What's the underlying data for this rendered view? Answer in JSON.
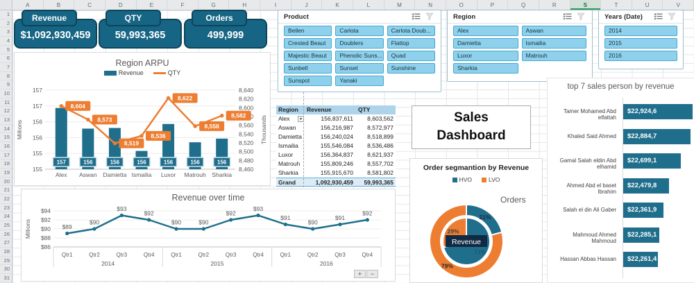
{
  "app": {
    "columns": [
      "A",
      "B",
      "C",
      "D",
      "E",
      "F",
      "G",
      "H",
      "I",
      "J",
      "K",
      "L",
      "M",
      "N",
      "O",
      "P",
      "Q",
      "R",
      "S",
      "T",
      "U",
      "V"
    ],
    "selected_column": "S",
    "row_count": 31
  },
  "kpi_cards": [
    {
      "label": "Revenue",
      "value": "$1,092,930,459"
    },
    {
      "label": "QTY",
      "value": "59,993,365"
    },
    {
      "label": "Orders",
      "value": "499,999"
    }
  ],
  "chart_data": [
    {
      "id": "region_arpu",
      "type": "bar",
      "title": "Region ARPU",
      "categories": [
        "Alex",
        "Aswan",
        "Damietta",
        "Ismailia",
        "Luxor",
        "Matrouh",
        "Sharkia"
      ],
      "series": [
        {
          "name": "Revenue",
          "kind": "bar",
          "axis": "left",
          "values_millions": [
            156.84,
            156.22,
            156.24,
            155.55,
            156.36,
            155.81,
            155.92
          ],
          "point_labels": [
            "157",
            "156",
            "156",
            "156",
            "156",
            "156",
            "156"
          ]
        },
        {
          "name": "QTY",
          "kind": "line",
          "axis": "right",
          "values_thousands": [
            8604,
            8573,
            8519,
            8536,
            8622,
            8558,
            8582
          ],
          "point_labels": [
            "8,604",
            "8,573",
            "8,519",
            "8,536",
            "8,622",
            "8,558",
            "8,582"
          ]
        }
      ],
      "left_axis": {
        "label": "Millions",
        "ticks": [
          "157",
          "157",
          "156",
          "156",
          "155",
          "155"
        ]
      },
      "right_axis": {
        "label": "Thousands",
        "ticks": [
          "8,640",
          "8,620",
          "8,600",
          "8,580",
          "8,560",
          "8,540",
          "8,520",
          "8,500",
          "8,480",
          "8,460"
        ]
      },
      "legend_position": "top"
    },
    {
      "id": "revenue_over_time",
      "type": "line",
      "title": "Revenue over time",
      "x_groups": [
        {
          "year": "2014",
          "quarters": [
            "Qtr1",
            "Qtr2",
            "Qtr3",
            "Qtr4"
          ]
        },
        {
          "year": "2015",
          "quarters": [
            "Qtr1",
            "Qtr2",
            "Qtr3",
            "Qtr4"
          ]
        },
        {
          "year": "2016",
          "quarters": [
            "Qtr1",
            "Qtr2",
            "Qtr3",
            "Qtr4"
          ]
        }
      ],
      "values_millions": [
        89,
        90,
        93,
        92,
        90,
        90,
        92,
        93,
        91,
        90,
        91,
        92
      ],
      "point_labels": [
        "$89",
        "$90",
        "$93",
        "$92",
        "$90",
        "$90",
        "$92",
        "$93",
        "$91",
        "$90",
        "$91",
        "$92"
      ],
      "y_axis": {
        "label": "Millions",
        "ticks": [
          "$94",
          "$92",
          "$90",
          "$88",
          "$86"
        ],
        "range": [
          86,
          94
        ]
      },
      "zoom_buttons": {
        "plus": "+",
        "minus": "−"
      }
    },
    {
      "id": "order_segmentation",
      "type": "pie",
      "title": "Order segmantion by Revenue",
      "legend": [
        "HVO",
        "LVO"
      ],
      "outer_ring": {
        "label": "Orders",
        "slices": [
          {
            "name": "HVO",
            "pct": 21,
            "label": "21%"
          },
          {
            "name": "LVO",
            "pct": 79,
            "label": "79%"
          }
        ]
      },
      "inner_pie": {
        "label": "Revenue",
        "slices": [
          {
            "name": "HVO",
            "pct": 71,
            "label": "71%"
          },
          {
            "name": "LVO",
            "pct": 29,
            "label": "29%"
          }
        ]
      }
    },
    {
      "id": "top7_salespersons",
      "type": "bar",
      "title": "top 7 sales person by revenue",
      "rows": [
        {
          "name": "Tamer Mohamed Abd elfattah",
          "label": "$22,924,6",
          "value": 22924.6
        },
        {
          "name": "Khaled Said Ahmed",
          "label": "$22,884,7",
          "value": 22884.7
        },
        {
          "name": "Gamal Salah eldin Abd elhamid",
          "label": "$22,699,1",
          "value": 22699.1
        },
        {
          "name": "Ahmed Abd el baset Ibrahim",
          "label": "$22,479,8",
          "value": 22479.8
        },
        {
          "name": "Salah el din Ali Gaber",
          "label": "$22,361,9",
          "value": 22361.9
        },
        {
          "name": "Mahmoud Ahmed Mahmoud",
          "label": "$22,285,1",
          "value": 22285.1
        },
        {
          "name": "Hassan Abbas Hassan",
          "label": "$22,261,4",
          "value": 22261.4
        }
      ]
    }
  ],
  "slicers": [
    {
      "title": "Product",
      "cols": 3,
      "items": [
        "Bellen",
        "Carlota",
        "Carlota Doub...",
        "Crested Beaut",
        "Doublers",
        "Flattop",
        "Majestic Beaut",
        "Phenolic Suns...",
        "Quad",
        "Sunbell",
        "Sunset",
        "Sunshine",
        "Sunspot",
        "Yanaki"
      ]
    },
    {
      "title": "Region",
      "cols": 2,
      "items": [
        "Alex",
        "Aswan",
        "Damietta",
        "Ismailia",
        "Luxor",
        "Matrouh",
        "Sharkia"
      ]
    },
    {
      "title": "Years (Date)",
      "cols": 1,
      "items": [
        "2014",
        "2015",
        "2016"
      ]
    }
  ],
  "pivot_table": {
    "headers": [
      "Region",
      "Revenue",
      "QTY"
    ],
    "rows": [
      [
        "Alex",
        "156,837,611",
        "8,603,562"
      ],
      [
        "Aswan",
        "156,216,987",
        "8,572,977"
      ],
      [
        "Damietta",
        "156,240,024",
        "8,518,899"
      ],
      [
        "Ismailia",
        "155,546,084",
        "8,536,486"
      ],
      [
        "Luxor",
        "156,364,837",
        "8,621,937"
      ],
      [
        "Matrouh",
        "155,809,246",
        "8,557,702"
      ],
      [
        "Sharkia",
        "155,915,670",
        "8,581,802"
      ]
    ],
    "total_row": [
      "Grand Tot",
      "1,092,930,459",
      "59,993,365"
    ]
  },
  "dashboard_title": {
    "line1": "Sales",
    "line2": "Dashboard"
  },
  "colors": {
    "teal": "#1F6E8C",
    "card_teal": "#176584",
    "card_border": "#0D4459",
    "orange": "#ED7D31",
    "slicer_fill": "#8FD1EC",
    "slicer_border": "#41A8D0",
    "table_header_blue": "#ADD4EA",
    "title_gray": "#595959",
    "selected_green": "#2E9A5D",
    "center_box_navy": "#102A43"
  }
}
